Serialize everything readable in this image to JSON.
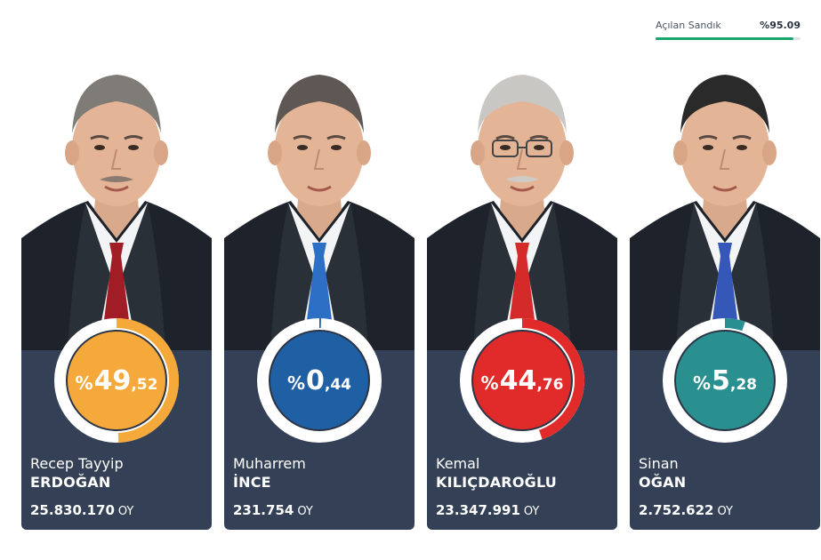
{
  "progress": {
    "label": "Açılan Sandık",
    "value": "%95.09",
    "fraction": 0.9509,
    "color": "#1aa56d"
  },
  "candidates": [
    {
      "first_name": "Recep Tayyip",
      "last_name": "ERDOĞAN",
      "pct_symbol": "%",
      "pct_int": "49",
      "pct_dec": ",52",
      "pct_value": 49.52,
      "votes": "25.830.170",
      "votes_unit": "OY",
      "color": "#f6a93b",
      "tie_color": "#a11d26",
      "hair_color": "#7f7b77"
    },
    {
      "first_name": "Muharrem",
      "last_name": "İNCE",
      "pct_symbol": "%",
      "pct_int": "0",
      "pct_dec": ",44",
      "pct_value": 0.44,
      "votes": "231.754",
      "votes_unit": "OY",
      "color": "#1f5fa3",
      "tie_color": "#2e6fc6",
      "hair_color": "#5e5753"
    },
    {
      "first_name": "Kemal",
      "last_name": "KILIÇDAROĞLU",
      "pct_symbol": "%",
      "pct_int": "44",
      "pct_dec": ",76",
      "pct_value": 44.76,
      "votes": "23.347.991",
      "votes_unit": "OY",
      "color": "#e12b2b",
      "tie_color": "#d42a2a",
      "hair_color": "#c9c7c4"
    },
    {
      "first_name": "Sinan",
      "last_name": "OĞAN",
      "pct_symbol": "%",
      "pct_int": "5",
      "pct_dec": ",28",
      "pct_value": 5.28,
      "votes": "2.752.622",
      "votes_unit": "OY",
      "color": "#2a8f8f",
      "tie_color": "#3557b8",
      "hair_color": "#2b2a2a"
    }
  ]
}
